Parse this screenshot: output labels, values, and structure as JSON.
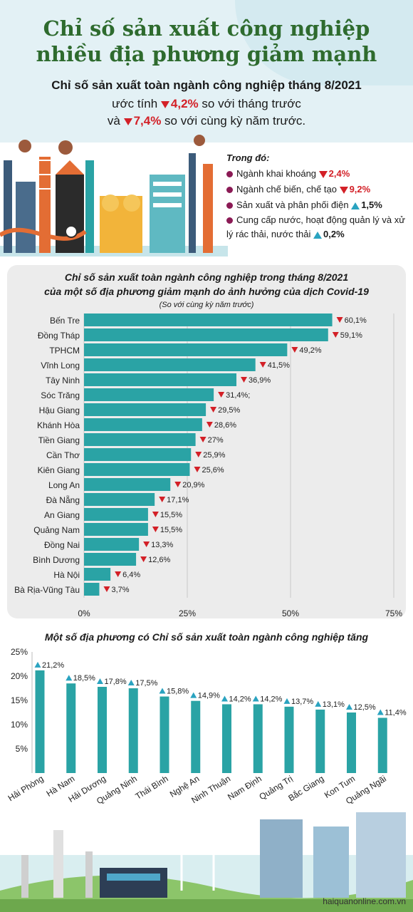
{
  "header": {
    "title_line1": "Chỉ số sản xuất công nghiệp",
    "title_line2": "nhiều địa phương giảm mạnh",
    "subtitle": "Chỉ số sản xuất toàn ngành công nghiệp tháng 8/2021",
    "line2_prefix": "ước tính ",
    "line2_value": "4,2%",
    "line2_suffix": " so với tháng trước",
    "line3_prefix": "và ",
    "line3_value": "7,4%",
    "line3_suffix": " so với cùng kỳ năm trước."
  },
  "breakdown": {
    "heading": "Trong đó:",
    "items": [
      {
        "label": "Ngành khai khoáng ",
        "value": "2,4%",
        "dir": "down"
      },
      {
        "label": "Ngành chế biến, chế tạo ",
        "value": "9,2%",
        "dir": "down"
      },
      {
        "label": "Sản xuất và phân phối điện ",
        "value": "1,5%",
        "dir": "up"
      },
      {
        "label": "Cung cấp nước, hoạt động quản lý và xử lý rác thải, nước thải ",
        "value": "0,2%",
        "dir": "up"
      }
    ]
  },
  "colors": {
    "bar": "#2aa3a5",
    "down": "#d32027",
    "up": "#2aa3c0",
    "title_green": "#2e6b2e"
  },
  "chart_data": [
    {
      "type": "bar",
      "orientation": "horizontal",
      "title": "Chỉ số sản xuất toàn ngành công nghiệp trong tháng 8/2021",
      "title_line2": "của một số địa phương giảm mạnh do ảnh hưởng của dịch Covid-19",
      "note": "(So với cùng kỳ năm trước)",
      "categories": [
        "Bến Tre",
        "Đồng Tháp",
        "TPHCM",
        "Vĩnh Long",
        "Tây Ninh",
        "Sóc Trăng",
        "Hậu Giang",
        "Khánh Hòa",
        "Tiền Giang",
        "Cần Thơ",
        "Kiên Giang",
        "Long An",
        "Đà Nẵng",
        "An Giang",
        "Quảng Nam",
        "Đồng Nai",
        "Bình Dương",
        "Hà Nội",
        "Bà Rịa-Vũng Tàu"
      ],
      "values": [
        60.1,
        59.1,
        49.2,
        41.5,
        36.9,
        31.4,
        29.5,
        28.6,
        27,
        25.9,
        25.6,
        20.9,
        17.1,
        15.5,
        15.5,
        13.3,
        12.6,
        6.4,
        3.7
      ],
      "value_labels": [
        "60,1%",
        "59,1%",
        "49,2%",
        "41,5%",
        "36,9%",
        "31,4%;",
        "29,5%",
        "28,6%",
        "27%",
        "25,9%",
        "25,6%",
        "20,9%",
        "17,1%",
        "15,5%",
        "15,5%",
        "13,3%",
        "12,6%",
        "6,4%",
        "3,7%"
      ],
      "xlim": [
        0,
        75
      ],
      "ticks": [
        "0%",
        "25%",
        "50%",
        "75%"
      ],
      "grid": true
    },
    {
      "type": "bar",
      "orientation": "vertical",
      "title": "Một số địa phương có Chỉ số sản xuất toàn ngành công nghiệp tăng",
      "categories": [
        "Hải Phòng",
        "Hà Nam",
        "Hải Dương",
        "Quảng Ninh",
        "Thái Bình",
        "Nghệ An",
        "Ninh Thuận",
        "Nam Định",
        "Quảng Trị",
        "Bắc Giang",
        "Kon Tum",
        "Quảng Ngãi"
      ],
      "values": [
        21.2,
        18.5,
        17.8,
        17.5,
        15.8,
        14.9,
        14.2,
        14.2,
        13.7,
        13.1,
        12.5,
        11.4
      ],
      "value_labels": [
        "21,2%",
        "18,5%",
        "17,8%",
        "17,5%",
        "15,8%",
        "14,9%",
        "14,2%",
        "14,2%",
        "13,7%",
        "13,1%",
        "12,5%",
        "11,4%"
      ],
      "ylim": [
        0,
        25
      ],
      "ticks": [
        "5%",
        "10%",
        "15%",
        "20%",
        "25%"
      ],
      "grid": false
    }
  ],
  "footer": {
    "url": "haiquanonline.com.vn"
  }
}
